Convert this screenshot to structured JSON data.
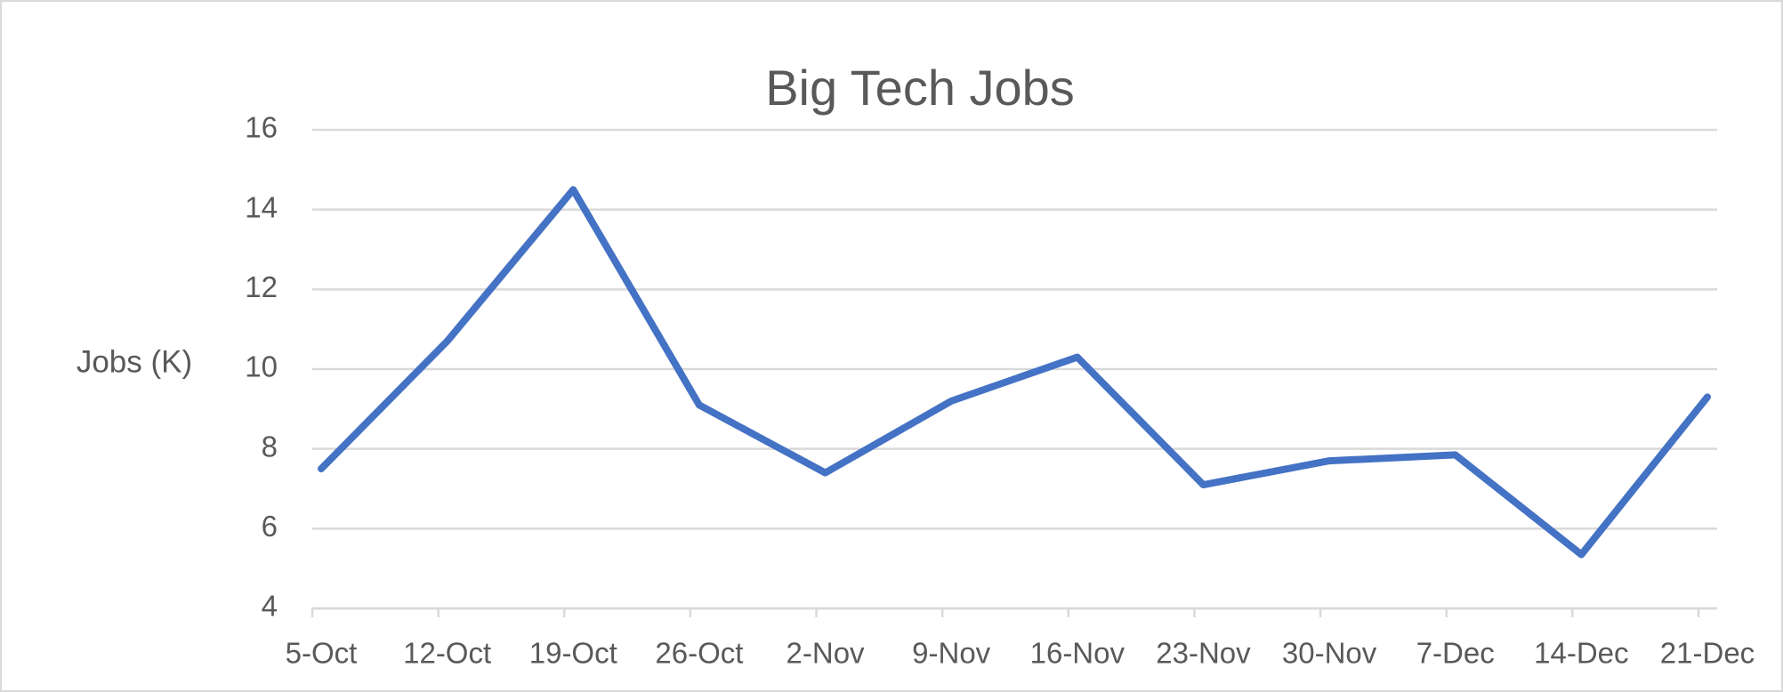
{
  "chart_data": {
    "type": "line",
    "title": "Big Tech Jobs",
    "y_label": "Jobs (K)",
    "categories": [
      "5-Oct",
      "12-Oct",
      "19-Oct",
      "26-Oct",
      "2-Nov",
      "9-Nov",
      "16-Nov",
      "23-Nov",
      "30-Nov",
      "7-Dec",
      "14-Dec",
      "21-Dec"
    ],
    "series": [
      {
        "name": "Jobs",
        "color": "#4472c4",
        "values": [
          7.5,
          10.7,
          14.5,
          9.1,
          7.4,
          9.2,
          10.3,
          7.1,
          7.7,
          7.85,
          5.35,
          9.3
        ]
      }
    ],
    "ylim": [
      4,
      16
    ],
    "yticks": [
      4,
      6,
      8,
      10,
      12,
      14,
      16
    ],
    "grid": true
  }
}
